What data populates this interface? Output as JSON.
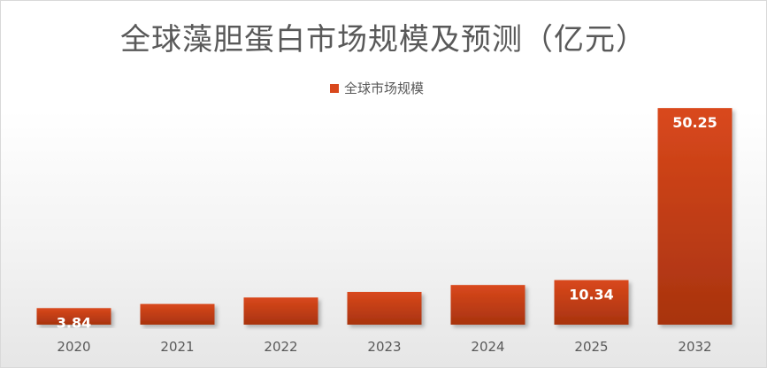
{
  "chart_data": {
    "type": "bar",
    "title": "全球藻胆蛋白市场规模及预测（亿元）",
    "categories": [
      "2020",
      "2021",
      "2022",
      "2023",
      "2024",
      "2025",
      "2032"
    ],
    "series": [
      {
        "name": "全球市场规模",
        "values": [
          3.84,
          4.8,
          6.3,
          7.6,
          9.2,
          10.34,
          50.25
        ]
      }
    ],
    "data_labels": [
      "3.84",
      "",
      "",
      "",
      "",
      "10.34",
      "50.25"
    ],
    "ylim": [
      0,
      55
    ],
    "grid": false,
    "legend_position": "top-center",
    "colors": {
      "bar_top": "#d9481c",
      "bar_bottom": "#a8330f"
    }
  }
}
